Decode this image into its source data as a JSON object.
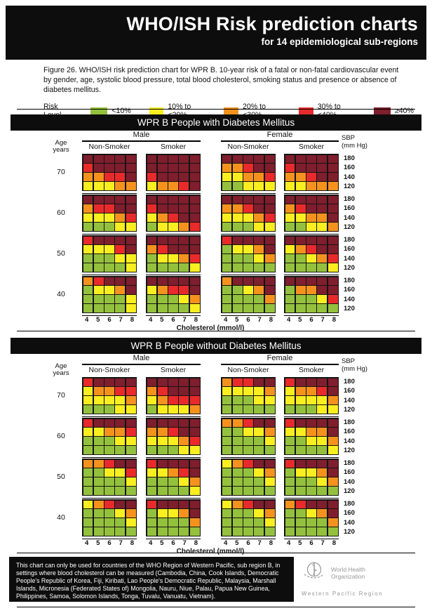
{
  "header": {
    "title": "WHO/ISH Risk prediction charts",
    "subtitle": "for 14 epidemiological sub-regions"
  },
  "caption": "Figure 26. WHO/ISH risk prediction chart for WPR B. 10-year risk of a fatal or non-fatal cardiovascular event by gender, age, systolic blood pressure, total blood cholesterol, smoking status and presence or absence of diabetes mellitus.",
  "legend": {
    "title": "Risk Level",
    "items": [
      {
        "key": "G",
        "label": "<10%"
      },
      {
        "key": "Y",
        "label": "10% to <20%"
      },
      {
        "key": "O",
        "label": "20% to <30%"
      },
      {
        "key": "R",
        "label": "30% to <40%"
      },
      {
        "key": "D",
        "label": "≥40%"
      }
    ]
  },
  "risk_colors": {
    "G": "#94c13d",
    "Y": "#f9ee1f",
    "O": "#f5921e",
    "R": "#e92a2b",
    "D": "#7f1e2d"
  },
  "chart_data": {
    "type": "heatmap",
    "risk_levels": {
      "G": "<10%",
      "Y": "10% to <20%",
      "O": "20% to <30%",
      "R": "30% to <40%",
      "D": "≥40%"
    },
    "x": [
      4,
      5,
      6,
      7,
      8
    ],
    "x_label": "Cholesterol (mmol/l)",
    "y": [
      180,
      160,
      140,
      120
    ],
    "y_label": "SBP (mm Hg)",
    "age_axis_label": [
      "Age",
      "years"
    ],
    "sbp_axis_label": [
      "SBP",
      "(mm Hg)"
    ],
    "gender_labels": [
      "Male",
      "Female"
    ],
    "smoking_labels": [
      "Non-Smoker",
      "Smoker"
    ],
    "panels": [
      "male_nonsmoker",
      "male_smoker",
      "female_nonsmoker",
      "female_smoker"
    ],
    "charts": [
      {
        "title": "WPR B People with Diabetes Mellitus",
        "ages": [
          {
            "age": 70,
            "male_nonsmoker": [
              "DDDDD",
              "RDDDD",
              "OORRD",
              "YYYOO"
            ],
            "male_smoker": [
              "DDDDD",
              "DDDDD",
              "RDDDD",
              "YOORD"
            ],
            "female_nonsmoker": [
              "DDDDD",
              "OORDD",
              "YYOOR",
              "GGYYY"
            ],
            "female_smoker": [
              "DDDDD",
              "RDDDD",
              "OORDD",
              "YYOOO"
            ]
          },
          {
            "age": 60,
            "male_nonsmoker": [
              "DDDDD",
              "ORRDD",
              "YYYOR",
              "GGGYY"
            ],
            "male_smoker": [
              "DDDDD",
              "RDDDD",
              "YORDD",
              "GYYOR"
            ],
            "female_nonsmoker": [
              "DDDDD",
              "OORDD",
              "YYYOR",
              "GGGYY"
            ],
            "female_smoker": [
              "DDDDD",
              "ORDDD",
              "YYOOD",
              "GGYYO"
            ]
          },
          {
            "age": 50,
            "male_nonsmoker": [
              "RDDDD",
              "YYYRD",
              "GGGYY",
              "GGGGY"
            ],
            "male_smoker": [
              "DDDDD",
              "ORDDD",
              "GYYOR",
              "GGGGY"
            ],
            "female_nonsmoker": [
              "RDDDD",
              "GYYOD",
              "GGGYO",
              "GGGGG"
            ],
            "female_smoker": [
              "DDDDD",
              "YORDD",
              "GGYOR",
              "GGGGY"
            ]
          },
          {
            "age": 40,
            "male_nonsmoker": [
              "ORDDD",
              "GYYOD",
              "GGGGY",
              "GGGGY"
            ],
            "male_smoker": [
              "DDDDD",
              "YORRD",
              "GGGYO",
              "GGGGY"
            ],
            "female_nonsmoker": [
              "ODDDD",
              "GGYOD",
              "GGGGO",
              "GGGGG"
            ],
            "female_smoker": [
              "DDDDD",
              "GOODD",
              "GGGYR",
              "GGGGG"
            ]
          }
        ]
      },
      {
        "title": "WPR B People without Diabetes Mellitus",
        "ages": [
          {
            "age": 70,
            "male_nonsmoker": [
              "RDDDD",
              "YOORR",
              "YYYYO",
              "GGGYY"
            ],
            "male_smoker": [
              "DDDDD",
              "ORDDD",
              "YORRR",
              "GYYYO"
            ],
            "female_nonsmoker": [
              "ORRDD",
              "YYYYO",
              "GGGYY",
              "GGGGG"
            ],
            "female_smoker": [
              "RDDDD",
              "YOORD",
              "YYYYO",
              "GGGYY"
            ]
          },
          {
            "age": 60,
            "male_nonsmoker": [
              "RDDDD",
              "YYOOR",
              "GGGYY",
              "GGGGG"
            ],
            "male_smoker": [
              "DDDDD",
              "OORDD",
              "YYYOR",
              "GGGYY"
            ],
            "female_nonsmoker": [
              "OORDD",
              "GGYYO",
              "GGGGY",
              "GGGGG"
            ],
            "female_smoker": [
              "RDDDD",
              "YYOOD",
              "GGYYO",
              "GGGGY"
            ]
          },
          {
            "age": 50,
            "male_nonsmoker": [
              "OORDD",
              "GGYYR",
              "GGGGY",
              "GGGGG"
            ],
            "male_smoker": [
              "RDDDD",
              "YYORD",
              "GGGYO",
              "GGGGY"
            ],
            "female_nonsmoker": [
              "YORDD",
              "GGGYO",
              "GGGGY",
              "GGGGG"
            ],
            "female_smoker": [
              "RDDDD",
              "GYYOD",
              "GGGYO",
              "GGGGG"
            ]
          },
          {
            "age": 40,
            "male_nonsmoker": [
              "YORDD",
              "GGGYO",
              "GGGGY",
              "GGGGG"
            ],
            "male_smoker": [
              "RDDDD",
              "GYYOD",
              "GGGGO",
              "GGGGG"
            ],
            "female_nonsmoker": [
              "YORDD",
              "GGGYO",
              "GGGGY",
              "GGGGG"
            ],
            "female_smoker": [
              "ORDDD",
              "GGYOD",
              "GGGGO",
              "GGGGG"
            ]
          }
        ]
      }
    ]
  },
  "footer": {
    "text": "This chart can only be used for countries of the WHO Region of Western Pacific, sub region B, in settings where blood cholesterol can be measured (Cambodia, China, Cook Islands, Democratic People's Republic of Korea, Fiji, Kiribati, Lao People's Democratic Republic, Malaysia, Marshall Islands, Micronesia (Federated States of) Mongolia, Nauru, Niue, Palau, Papua New Guinea, Philippines, Samoa, Solomon Islands, Tonga, Tuvalu, Vanuatu, Vietnam)."
  },
  "logo": {
    "org_line1": "World Health",
    "org_line2": "Organization",
    "region": "Western Pacific Region"
  }
}
